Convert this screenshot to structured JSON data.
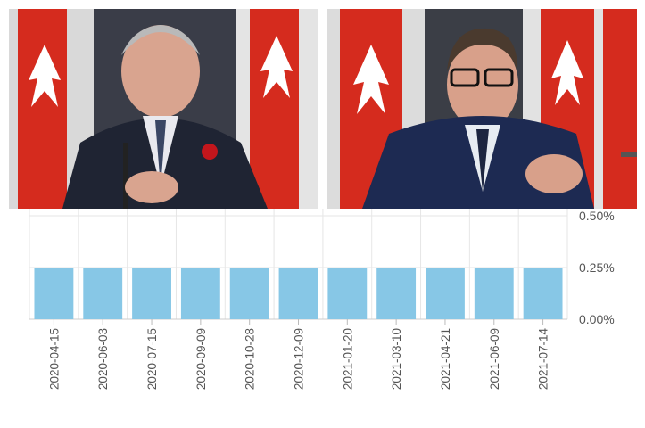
{
  "photos": [
    {
      "subject": "man in dark pinstripe suit with red poppy pin, seated at microphone, Canadian flags behind"
    },
    {
      "subject": "man with glasses in navy suit, hands clasped, Canadian flags behind"
    }
  ],
  "colors": {
    "bar": "#87c7e6",
    "grid": "#e6e6e6",
    "axis_text": "#555555",
    "flag_red": "#d52b1e"
  },
  "chart_data": {
    "type": "bar",
    "title": "",
    "xlabel": "",
    "ylabel": "",
    "categories": [
      "2020-04-15",
      "2020-06-03",
      "2020-07-15",
      "2020-09-09",
      "2020-10-28",
      "2020-12-09",
      "2021-01-20",
      "2021-03-10",
      "2021-04-21",
      "2021-06-09",
      "2021-07-14"
    ],
    "values": [
      0.25,
      0.25,
      0.25,
      0.25,
      0.25,
      0.25,
      0.25,
      0.25,
      0.25,
      0.25,
      0.25
    ],
    "ylim": [
      0,
      0.5
    ],
    "y_ticks": [
      {
        "value": 0.0,
        "label": "0.00%"
      },
      {
        "value": 0.25,
        "label": "0.25%"
      },
      {
        "value": 0.5,
        "label": "0.50%"
      }
    ],
    "grid": true
  }
}
